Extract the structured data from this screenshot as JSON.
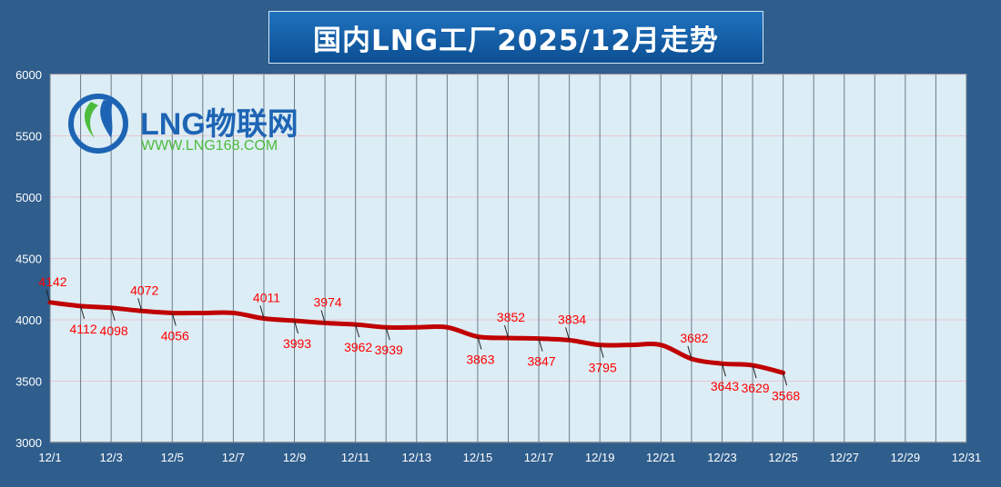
{
  "title": "国内LNG工厂2025/12月走势",
  "logo": {
    "brand": "LNG物联网",
    "url": "WWW.LNG168.COM",
    "colors": {
      "blue": "#1e64b4",
      "green": "#4dbb3c"
    }
  },
  "chart_data": {
    "type": "line",
    "title": "国内LNG工厂2025/12月走势",
    "xlabel": "",
    "ylabel": "",
    "x_range": [
      1,
      31
    ],
    "ylim": [
      3000,
      6000
    ],
    "y_ticks": [
      3000,
      3500,
      4000,
      4500,
      5000,
      5500,
      6000
    ],
    "x_tick_labels": [
      "12/1",
      "12/3",
      "12/5",
      "12/7",
      "12/9",
      "12/11",
      "12/13",
      "12/15",
      "12/17",
      "12/19",
      "12/21",
      "12/23",
      "12/25",
      "12/27",
      "12/29",
      "12/31"
    ],
    "x_tick_days": [
      1,
      3,
      5,
      7,
      9,
      11,
      13,
      15,
      17,
      19,
      21,
      23,
      25,
      27,
      29,
      31
    ],
    "grid": "vertical lines every day, horizontal at y ticks",
    "series": [
      {
        "color": "#c00000",
        "points": [
          {
            "day": 1,
            "value": 4142
          },
          {
            "day": 2,
            "value": 4112
          },
          {
            "day": 3,
            "value": 4098
          },
          {
            "day": 4,
            "value": 4072
          },
          {
            "day": 5,
            "value": 4056
          },
          {
            "day": 6,
            "value": 4056
          },
          {
            "day": 7,
            "value": 4056
          },
          {
            "day": 8,
            "value": 4011
          },
          {
            "day": 9,
            "value": 3993
          },
          {
            "day": 10,
            "value": 3974
          },
          {
            "day": 11,
            "value": 3962
          },
          {
            "day": 12,
            "value": 3939
          },
          {
            "day": 13,
            "value": 3939
          },
          {
            "day": 14,
            "value": 3939
          },
          {
            "day": 15,
            "value": 3863
          },
          {
            "day": 16,
            "value": 3852
          },
          {
            "day": 17,
            "value": 3847
          },
          {
            "day": 18,
            "value": 3834
          },
          {
            "day": 19,
            "value": 3795
          },
          {
            "day": 20,
            "value": 3795
          },
          {
            "day": 21,
            "value": 3795
          },
          {
            "day": 22,
            "value": 3682
          },
          {
            "day": 23,
            "value": 3643
          },
          {
            "day": 24,
            "value": 3629
          },
          {
            "day": 25,
            "value": 3568
          }
        ]
      }
    ],
    "data_labels": [
      {
        "day": 1,
        "text": "4142",
        "pos": "above"
      },
      {
        "day": 2,
        "text": "4112",
        "pos": "below"
      },
      {
        "day": 3,
        "text": "4098",
        "pos": "below"
      },
      {
        "day": 4,
        "text": "4072",
        "pos": "above"
      },
      {
        "day": 5,
        "text": "4056",
        "pos": "below"
      },
      {
        "day": 8,
        "text": "4011",
        "pos": "above"
      },
      {
        "day": 9,
        "text": "3993",
        "pos": "below"
      },
      {
        "day": 10,
        "text": "3974",
        "pos": "above"
      },
      {
        "day": 11,
        "text": "3962",
        "pos": "below"
      },
      {
        "day": 12,
        "text": "3939",
        "pos": "below"
      },
      {
        "day": 15,
        "text": "3863",
        "pos": "below"
      },
      {
        "day": 16,
        "text": "3852",
        "pos": "above"
      },
      {
        "day": 17,
        "text": "3847",
        "pos": "below"
      },
      {
        "day": 18,
        "text": "3834",
        "pos": "above"
      },
      {
        "day": 19,
        "text": "3795",
        "pos": "below"
      },
      {
        "day": 22,
        "text": "3682",
        "pos": "above"
      },
      {
        "day": 23,
        "text": "3643",
        "pos": "below"
      },
      {
        "day": 24,
        "text": "3629",
        "pos": "below"
      },
      {
        "day": 25,
        "text": "3568",
        "pos": "below"
      }
    ],
    "colors": {
      "plot_bg": "#dcedf5",
      "line": "#c00000",
      "label": "#ff0000",
      "axis_text": "#ffffff"
    }
  }
}
